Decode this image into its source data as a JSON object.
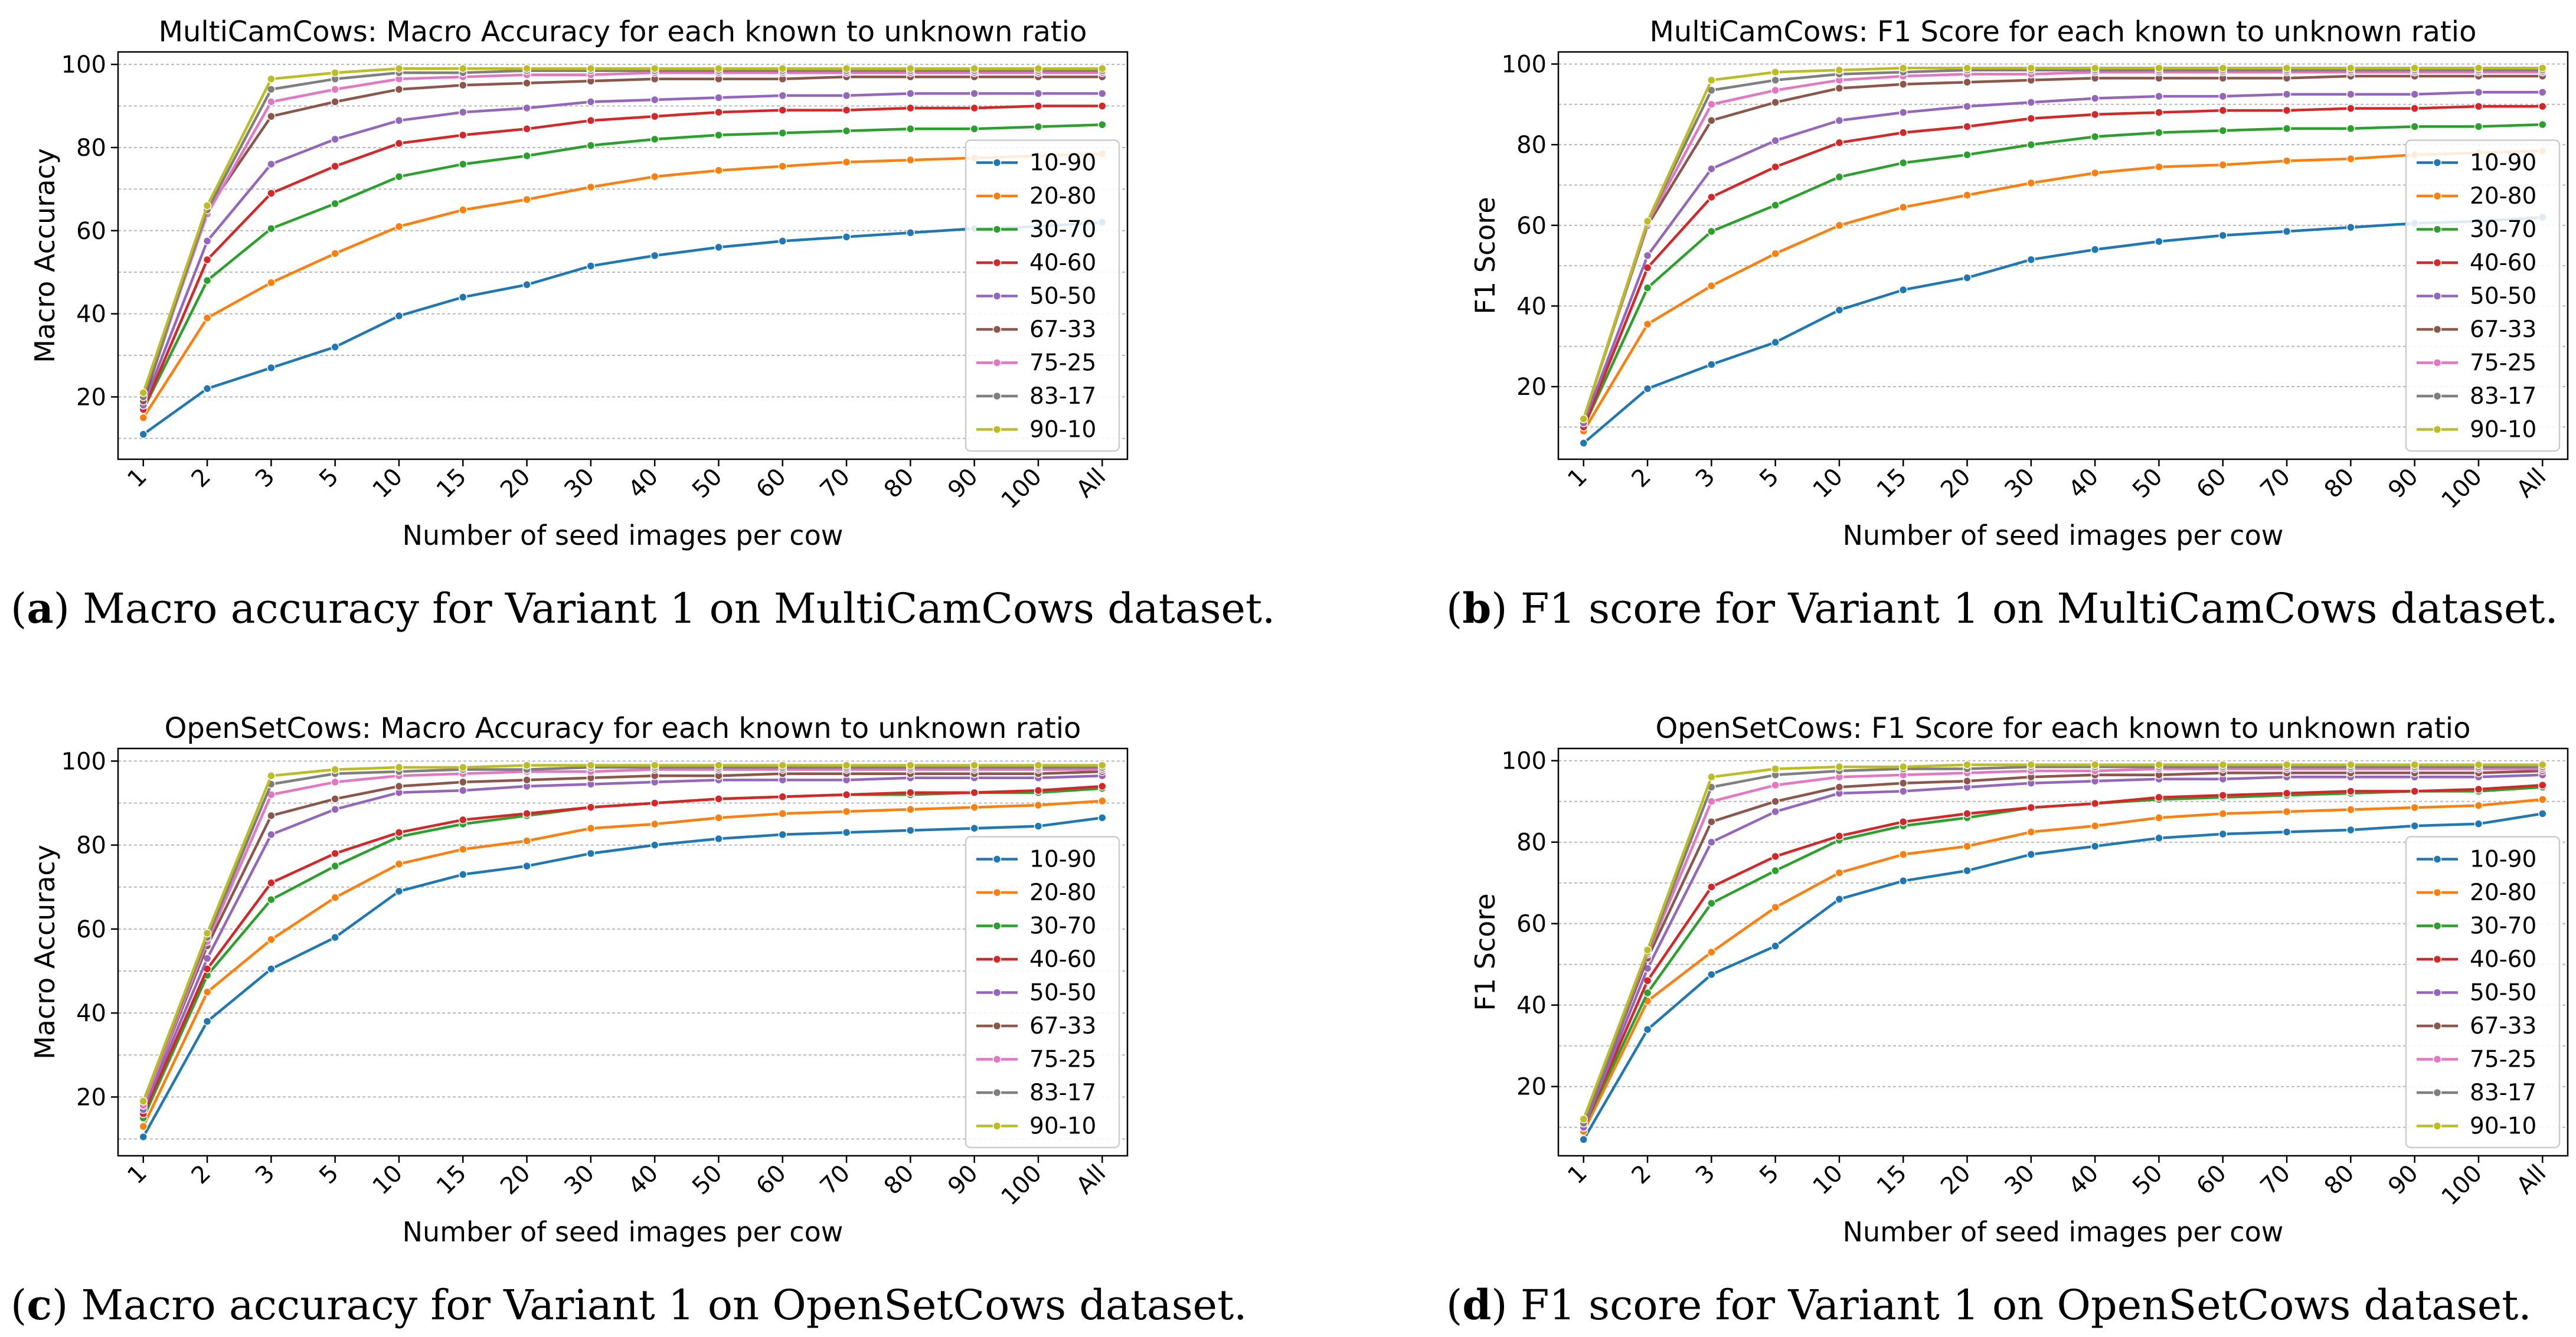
{
  "colors": {
    "10-90": "#1f77b4",
    "20-80": "#ff7f0e",
    "30-70": "#2ca02c",
    "40-60": "#d62728",
    "50-50": "#9467bd",
    "67-33": "#8c564b",
    "75-25": "#e377c2",
    "83-17": "#7f7f7f",
    "90-10": "#bcbd22"
  },
  "captions": [
    {
      "label": "(a)",
      "text": " Macro accuracy for Variant 1 on MultiCamCows dataset."
    },
    {
      "label": "(b)",
      "text": " F1 score for Variant 1 on MultiCamCows dataset."
    },
    {
      "label": "(c)",
      "text": " Macro accuracy for Variant 1 on OpenSetCows dataset."
    },
    {
      "label": "(d)",
      "text": " F1 score for Variant 1 on OpenSetCows dataset."
    }
  ],
  "chart_data": [
    {
      "type": "line",
      "title": "MultiCamCows: Macro Accuracy for each known to unknown ratio",
      "xlabel": "Number of seed images per cow",
      "ylabel": "Macro Accuracy",
      "categories": [
        "1",
        "2",
        "3",
        "5",
        "10",
        "15",
        "20",
        "30",
        "40",
        "50",
        "60",
        "70",
        "80",
        "90",
        "100",
        "All"
      ],
      "ylim": [
        5,
        103
      ],
      "yticks": [
        20,
        40,
        60,
        80,
        100
      ],
      "grid": true,
      "legend_position": "right",
      "series": [
        {
          "name": "10-90",
          "values": [
            11,
            22,
            27,
            32,
            39.5,
            44,
            47,
            51.5,
            54,
            56,
            57.5,
            58.5,
            59.5,
            60.5,
            61,
            62
          ]
        },
        {
          "name": "20-80",
          "values": [
            15,
            39,
            47.5,
            54.5,
            61,
            65,
            67.5,
            70.5,
            73,
            74.5,
            75.5,
            76.5,
            77,
            77.5,
            78,
            78.5
          ]
        },
        {
          "name": "30-70",
          "values": [
            17,
            48,
            60.5,
            66.5,
            73,
            76,
            78,
            80.5,
            82,
            83,
            83.5,
            84,
            84.5,
            84.5,
            85,
            85.5
          ]
        },
        {
          "name": "40-60",
          "values": [
            17,
            53,
            69,
            75.5,
            81,
            83,
            84.5,
            86.5,
            87.5,
            88.5,
            89,
            89,
            89.5,
            89.5,
            90,
            90
          ]
        },
        {
          "name": "50-50",
          "values": [
            18,
            57.5,
            76,
            82,
            86.5,
            88.5,
            89.5,
            91,
            91.5,
            92,
            92.5,
            92.5,
            93,
            93,
            93,
            93
          ]
        },
        {
          "name": "67-33",
          "values": [
            19,
            65,
            87.5,
            91,
            94,
            95,
            95.5,
            96,
            96.5,
            96.5,
            96.5,
            97,
            97,
            97,
            97,
            97
          ]
        },
        {
          "name": "75-25",
          "values": [
            20,
            64,
            91,
            94,
            96.5,
            97,
            97.5,
            97.5,
            98,
            98,
            98,
            98,
            98,
            98,
            98,
            98
          ]
        },
        {
          "name": "83-17",
          "values": [
            20,
            65,
            94,
            96.5,
            98,
            98,
            98.5,
            98.5,
            98.5,
            98.5,
            98.5,
            98.5,
            98.5,
            98.5,
            98.5,
            98.5
          ]
        },
        {
          "name": "90-10",
          "values": [
            21,
            66,
            96.5,
            98,
            99,
            99,
            99,
            99,
            99,
            99,
            99,
            99,
            99,
            99,
            99,
            99
          ]
        }
      ]
    },
    {
      "type": "line",
      "title": "MultiCamCows: F1 Score for each known to unknown ratio",
      "xlabel": "Number of seed images per cow",
      "ylabel": "F1 Score",
      "categories": [
        "1",
        "2",
        "3",
        "5",
        "10",
        "15",
        "20",
        "30",
        "40",
        "50",
        "60",
        "70",
        "80",
        "90",
        "100",
        "All"
      ],
      "ylim": [
        2,
        103
      ],
      "yticks": [
        20,
        40,
        60,
        80,
        100
      ],
      "grid": true,
      "legend_position": "right",
      "series": [
        {
          "name": "10-90",
          "values": [
            6,
            19.5,
            25.5,
            31,
            39,
            44,
            47,
            51.5,
            54,
            56,
            57.5,
            58.5,
            59.5,
            60.5,
            61,
            62
          ]
        },
        {
          "name": "20-80",
          "values": [
            9,
            35.5,
            45,
            53,
            60,
            64.5,
            67.5,
            70.5,
            73,
            74.5,
            75,
            76,
            76.5,
            77.5,
            78,
            78.5
          ]
        },
        {
          "name": "30-70",
          "values": [
            10,
            44.5,
            58.5,
            65,
            72,
            75.5,
            77.5,
            80,
            82,
            83,
            83.5,
            84,
            84,
            84.5,
            84.5,
            85
          ]
        },
        {
          "name": "40-60",
          "values": [
            10,
            49.5,
            67,
            74.5,
            80.5,
            83,
            84.5,
            86.5,
            87.5,
            88,
            88.5,
            88.5,
            89,
            89,
            89.5,
            89.5
          ]
        },
        {
          "name": "50-50",
          "values": [
            11,
            52.5,
            74,
            81,
            86,
            88,
            89.5,
            90.5,
            91.5,
            92,
            92,
            92.5,
            92.5,
            92.5,
            93,
            93
          ]
        },
        {
          "name": "67-33",
          "values": [
            12,
            60,
            86,
            90.5,
            94,
            95,
            95.5,
            96,
            96.5,
            96.5,
            96.5,
            96.5,
            97,
            97,
            97,
            97
          ]
        },
        {
          "name": "75-25",
          "values": [
            12,
            60.5,
            90,
            93.5,
            96,
            97,
            97.5,
            97.5,
            98,
            98,
            98,
            98,
            98,
            98,
            98,
            98
          ]
        },
        {
          "name": "83-17",
          "values": [
            12,
            61,
            93.5,
            96,
            97.5,
            98,
            98.5,
            98.5,
            98.5,
            98.5,
            98.5,
            98.5,
            98.5,
            98.5,
            98.5,
            98.5
          ]
        },
        {
          "name": "90-10",
          "values": [
            12,
            61,
            96,
            98,
            98.5,
            99,
            99,
            99,
            99,
            99,
            99,
            99,
            99,
            99,
            99,
            99
          ]
        }
      ]
    },
    {
      "type": "line",
      "title": "OpenSetCows: Macro Accuracy for each known to unknown ratio",
      "xlabel": "Number of seed images per cow",
      "ylabel": "Macro Accuracy",
      "categories": [
        "1",
        "2",
        "3",
        "5",
        "10",
        "15",
        "20",
        "30",
        "40",
        "50",
        "60",
        "70",
        "80",
        "90",
        "100",
        "All"
      ],
      "ylim": [
        6,
        103
      ],
      "yticks": [
        20,
        40,
        60,
        80,
        100
      ],
      "grid": true,
      "legend_position": "right",
      "series": [
        {
          "name": "10-90",
          "values": [
            10.5,
            38,
            50.5,
            58,
            69,
            73,
            75,
            78,
            80,
            81.5,
            82.5,
            83,
            83.5,
            84,
            84.5,
            86.5
          ]
        },
        {
          "name": "20-80",
          "values": [
            13,
            45,
            57.5,
            67.5,
            75.5,
            79,
            81,
            84,
            85,
            86.5,
            87.5,
            88,
            88.5,
            89,
            89.5,
            90.5
          ]
        },
        {
          "name": "30-70",
          "values": [
            15,
            49,
            67,
            75,
            82,
            85,
            87,
            89,
            90,
            91,
            91.5,
            92,
            92,
            92.5,
            92.5,
            93.5
          ]
        },
        {
          "name": "40-60",
          "values": [
            16,
            50.5,
            71,
            78,
            83,
            86,
            87.5,
            89,
            90,
            91,
            91.5,
            92,
            92.5,
            92.5,
            93,
            94
          ]
        },
        {
          "name": "50-50",
          "values": [
            17,
            53,
            82.5,
            88.5,
            92.5,
            93,
            94,
            94.5,
            95,
            95.5,
            95.5,
            95.5,
            96,
            96,
            96,
            96.5
          ]
        },
        {
          "name": "67-33",
          "values": [
            18,
            56,
            87,
            91,
            94,
            95,
            95.5,
            96,
            96.5,
            96.5,
            97,
            97,
            97,
            97,
            97,
            97.5
          ]
        },
        {
          "name": "75-25",
          "values": [
            18,
            57,
            92,
            95,
            96.5,
            97,
            97.5,
            97.5,
            98,
            98,
            98,
            98,
            98,
            98,
            98,
            98
          ]
        },
        {
          "name": "83-17",
          "values": [
            19,
            58,
            94.5,
            97,
            97.5,
            98,
            98,
            98.5,
            98.5,
            98.5,
            98.5,
            98.5,
            98.5,
            98.5,
            98.5,
            98.5
          ]
        },
        {
          "name": "90-10",
          "values": [
            19,
            59,
            96.5,
            98,
            98.5,
            98.5,
            99,
            99,
            99,
            99,
            99,
            99,
            99,
            99,
            99,
            99
          ]
        }
      ]
    },
    {
      "type": "line",
      "title": "OpenSetCows: F1 Score for each known to unknown ratio",
      "xlabel": "Number of seed images per cow",
      "ylabel": "F1 Score",
      "categories": [
        "1",
        "2",
        "3",
        "5",
        "10",
        "15",
        "20",
        "30",
        "40",
        "50",
        "60",
        "70",
        "80",
        "90",
        "100",
        "All"
      ],
      "ylim": [
        3,
        103
      ],
      "yticks": [
        20,
        40,
        60,
        80,
        100
      ],
      "grid": true,
      "legend_position": "right",
      "series": [
        {
          "name": "10-90",
          "values": [
            7,
            34,
            47.5,
            54.5,
            66,
            70.5,
            73,
            77,
            79,
            81,
            82,
            82.5,
            83,
            84,
            84.5,
            87
          ]
        },
        {
          "name": "20-80",
          "values": [
            9,
            41,
            53,
            64,
            72.5,
            77,
            79,
            82.5,
            84,
            86,
            87,
            87.5,
            88,
            88.5,
            89,
            90.5
          ]
        },
        {
          "name": "30-70",
          "values": [
            10,
            43,
            65,
            73,
            80.5,
            84,
            86,
            88.5,
            89.5,
            90.5,
            91,
            91.5,
            92,
            92.5,
            92.5,
            93.5
          ]
        },
        {
          "name": "40-60",
          "values": [
            10,
            46,
            69,
            76.5,
            81.5,
            85,
            87,
            88.5,
            89.5,
            91,
            91.5,
            92,
            92.5,
            92.5,
            93,
            94
          ]
        },
        {
          "name": "50-50",
          "values": [
            10,
            49,
            80,
            87.5,
            92,
            92.5,
            93.5,
            94.5,
            95,
            95.5,
            95.5,
            96,
            96,
            96,
            96,
            96.5
          ]
        },
        {
          "name": "67-33",
          "values": [
            11,
            51.5,
            85,
            90,
            93.5,
            94.5,
            95,
            96,
            96.5,
            96.5,
            97,
            97,
            97,
            97,
            97,
            97.5
          ]
        },
        {
          "name": "75-25",
          "values": [
            11,
            52.5,
            90,
            94,
            96,
            96.5,
            97,
            97.5,
            97.5,
            98,
            98,
            98,
            98,
            98,
            98,
            98
          ]
        },
        {
          "name": "83-17",
          "values": [
            11,
            53,
            93.5,
            96.5,
            97.5,
            98,
            98,
            98.5,
            98.5,
            98.5,
            98.5,
            98.5,
            98.5,
            98.5,
            98.5,
            98.5
          ]
        },
        {
          "name": "90-10",
          "values": [
            12,
            53.5,
            96,
            98,
            98.5,
            98.5,
            99,
            99,
            99,
            99,
            99,
            99,
            99,
            99,
            99,
            99
          ]
        }
      ]
    }
  ]
}
